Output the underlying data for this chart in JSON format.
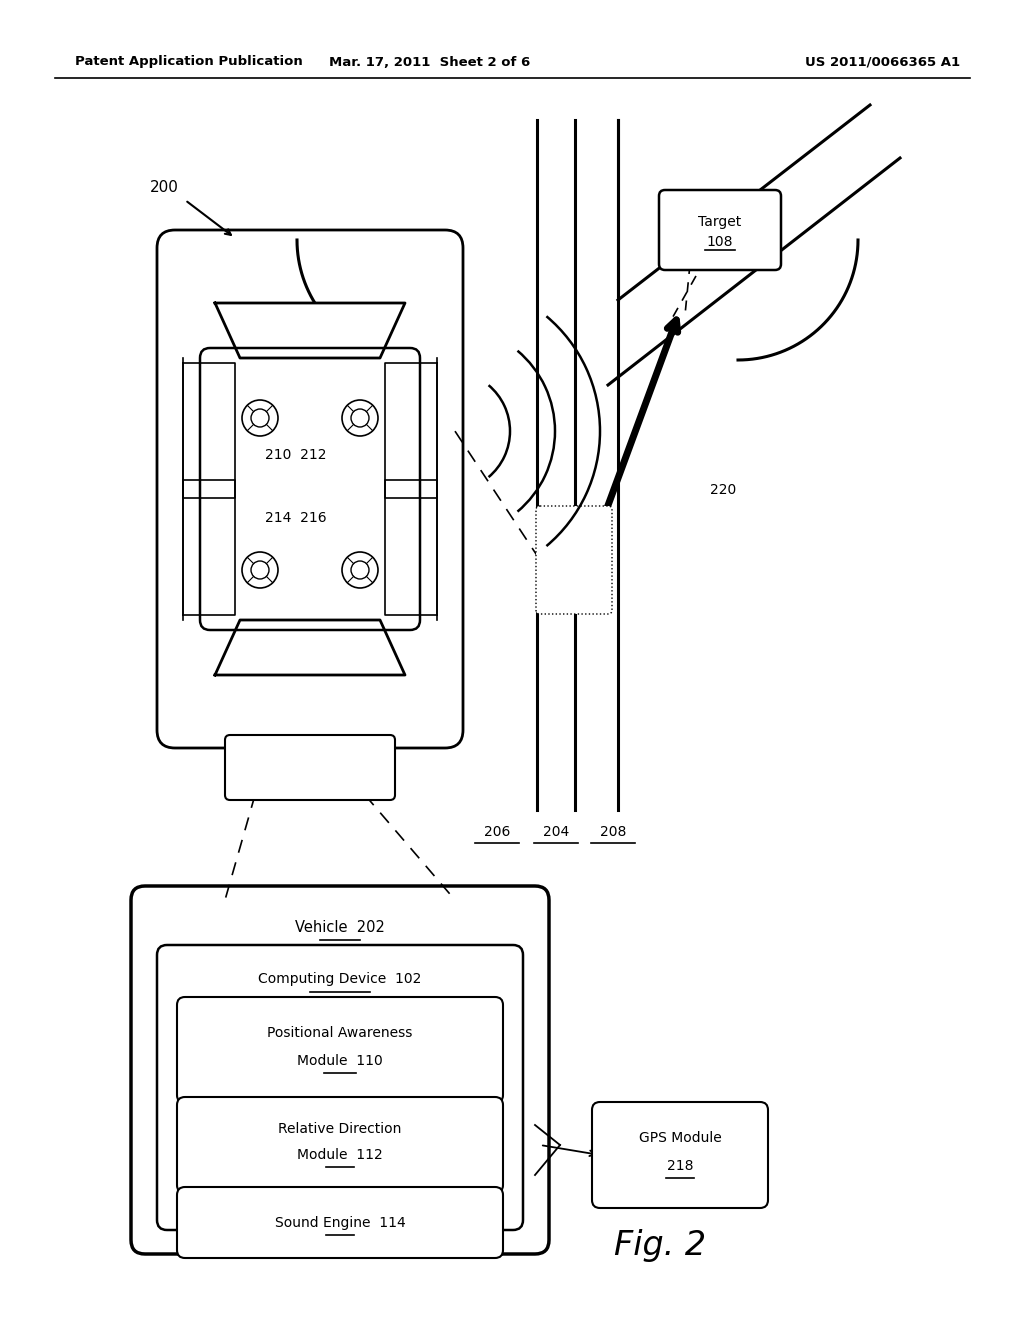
{
  "bg_color": "#ffffff",
  "header_left": "Patent Application Publication",
  "header_mid": "Mar. 17, 2011  Sheet 2 of 6",
  "header_right": "US 2011/0066365 A1",
  "fig_label": "Fig. 2",
  "label_200": "200",
  "label_202": "202",
  "label_102": "102",
  "label_110": "110",
  "label_112": "112",
  "label_114": "114",
  "label_218": "218",
  "label_204": "204",
  "label_206": "206",
  "label_208": "208",
  "label_220": "220",
  "label_108": "108",
  "label_210": "210",
  "label_212": "212",
  "label_214": "214",
  "label_216": "216",
  "target_text": "Target"
}
